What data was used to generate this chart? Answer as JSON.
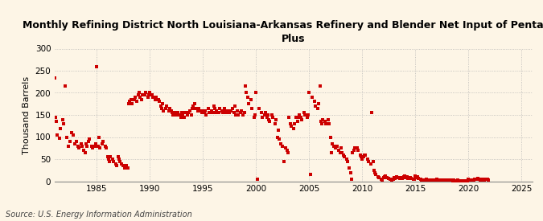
{
  "title": "Monthly Refining District North Louisiana-Arkansas Refinery and Blender Net Input of Pentanes\nPlus",
  "ylabel": "Thousand Barrels",
  "source": "Source: U.S. Energy Information Administration",
  "background_color": "#fdf5e6",
  "marker_color": "#cc0000",
  "grid_color": "#b0b0b0",
  "xlim": [
    1981,
    2026
  ],
  "ylim": [
    0,
    300
  ],
  "yticks": [
    0,
    50,
    100,
    150,
    200,
    250,
    300
  ],
  "xticks": [
    1985,
    1990,
    1995,
    2000,
    2005,
    2010,
    2015,
    2020,
    2025
  ],
  "data": [
    [
      1981.0,
      233
    ],
    [
      1981.1,
      145
    ],
    [
      1981.2,
      135
    ],
    [
      1981.3,
      105
    ],
    [
      1981.5,
      98
    ],
    [
      1981.6,
      120
    ],
    [
      1981.8,
      140
    ],
    [
      1981.9,
      130
    ],
    [
      1982.0,
      215
    ],
    [
      1982.2,
      100
    ],
    [
      1982.3,
      80
    ],
    [
      1982.5,
      90
    ],
    [
      1982.6,
      110
    ],
    [
      1982.8,
      105
    ],
    [
      1982.9,
      85
    ],
    [
      1983.1,
      90
    ],
    [
      1983.2,
      80
    ],
    [
      1983.3,
      75
    ],
    [
      1983.5,
      85
    ],
    [
      1983.6,
      80
    ],
    [
      1983.8,
      70
    ],
    [
      1983.9,
      65
    ],
    [
      1984.0,
      85
    ],
    [
      1984.1,
      80
    ],
    [
      1984.2,
      90
    ],
    [
      1984.3,
      95
    ],
    [
      1984.5,
      80
    ],
    [
      1984.6,
      75
    ],
    [
      1984.8,
      80
    ],
    [
      1984.9,
      85
    ],
    [
      1985.0,
      260
    ],
    [
      1985.1,
      80
    ],
    [
      1985.2,
      100
    ],
    [
      1985.3,
      75
    ],
    [
      1985.5,
      85
    ],
    [
      1985.6,
      90
    ],
    [
      1985.8,
      80
    ],
    [
      1985.9,
      75
    ],
    [
      1986.0,
      55
    ],
    [
      1986.1,
      50
    ],
    [
      1986.2,
      45
    ],
    [
      1986.3,
      55
    ],
    [
      1986.5,
      50
    ],
    [
      1986.6,
      45
    ],
    [
      1986.8,
      40
    ],
    [
      1986.9,
      35
    ],
    [
      1987.0,
      55
    ],
    [
      1987.1,
      50
    ],
    [
      1987.2,
      45
    ],
    [
      1987.3,
      40
    ],
    [
      1987.5,
      35
    ],
    [
      1987.6,
      30
    ],
    [
      1987.8,
      35
    ],
    [
      1987.9,
      30
    ],
    [
      1988.0,
      175
    ],
    [
      1988.1,
      180
    ],
    [
      1988.2,
      185
    ],
    [
      1988.3,
      175
    ],
    [
      1988.5,
      185
    ],
    [
      1988.6,
      190
    ],
    [
      1988.8,
      180
    ],
    [
      1988.9,
      195
    ],
    [
      1989.0,
      200
    ],
    [
      1989.1,
      190
    ],
    [
      1989.2,
      185
    ],
    [
      1989.3,
      195
    ],
    [
      1989.5,
      195
    ],
    [
      1989.6,
      200
    ],
    [
      1989.8,
      190
    ],
    [
      1989.9,
      195
    ],
    [
      1990.0,
      200
    ],
    [
      1990.1,
      195
    ],
    [
      1990.2,
      195
    ],
    [
      1990.3,
      190
    ],
    [
      1990.5,
      185
    ],
    [
      1990.6,
      190
    ],
    [
      1990.8,
      185
    ],
    [
      1990.9,
      180
    ],
    [
      1991.0,
      170
    ],
    [
      1991.1,
      165
    ],
    [
      1991.2,
      175
    ],
    [
      1991.3,
      160
    ],
    [
      1991.5,
      165
    ],
    [
      1991.6,
      170
    ],
    [
      1991.8,
      160
    ],
    [
      1991.9,
      165
    ],
    [
      1992.0,
      160
    ],
    [
      1992.1,
      155
    ],
    [
      1992.2,
      150
    ],
    [
      1992.3,
      155
    ],
    [
      1992.5,
      150
    ],
    [
      1992.6,
      155
    ],
    [
      1992.8,
      150
    ],
    [
      1992.9,
      145
    ],
    [
      1993.0,
      155
    ],
    [
      1993.1,
      150
    ],
    [
      1993.2,
      145
    ],
    [
      1993.3,
      155
    ],
    [
      1993.5,
      150
    ],
    [
      1993.6,
      155
    ],
    [
      1993.8,
      160
    ],
    [
      1993.9,
      150
    ],
    [
      1994.0,
      165
    ],
    [
      1994.1,
      170
    ],
    [
      1994.2,
      175
    ],
    [
      1994.3,
      165
    ],
    [
      1994.5,
      160
    ],
    [
      1994.6,
      165
    ],
    [
      1994.8,
      160
    ],
    [
      1994.9,
      155
    ],
    [
      1995.0,
      160
    ],
    [
      1995.1,
      155
    ],
    [
      1995.2,
      160
    ],
    [
      1995.3,
      150
    ],
    [
      1995.5,
      165
    ],
    [
      1995.6,
      155
    ],
    [
      1995.8,
      160
    ],
    [
      1995.9,
      155
    ],
    [
      1996.0,
      170
    ],
    [
      1996.1,
      165
    ],
    [
      1996.2,
      155
    ],
    [
      1996.3,
      160
    ],
    [
      1996.5,
      155
    ],
    [
      1996.6,
      165
    ],
    [
      1996.8,
      160
    ],
    [
      1996.9,
      155
    ],
    [
      1997.0,
      165
    ],
    [
      1997.1,
      160
    ],
    [
      1997.2,
      155
    ],
    [
      1997.3,
      160
    ],
    [
      1997.5,
      155
    ],
    [
      1997.6,
      160
    ],
    [
      1997.8,
      165
    ],
    [
      1997.9,
      155
    ],
    [
      1998.0,
      170
    ],
    [
      1998.1,
      150
    ],
    [
      1998.2,
      160
    ],
    [
      1998.3,
      150
    ],
    [
      1998.5,
      155
    ],
    [
      1998.6,
      160
    ],
    [
      1998.8,
      150
    ],
    [
      1998.9,
      155
    ],
    [
      1999.0,
      215
    ],
    [
      1999.1,
      200
    ],
    [
      1999.2,
      190
    ],
    [
      1999.3,
      175
    ],
    [
      1999.5,
      185
    ],
    [
      1999.6,
      165
    ],
    [
      1999.8,
      145
    ],
    [
      1999.9,
      150
    ],
    [
      2000.0,
      200
    ],
    [
      2000.1,
      5
    ],
    [
      2000.3,
      165
    ],
    [
      2000.5,
      155
    ],
    [
      2000.6,
      145
    ],
    [
      2000.8,
      150
    ],
    [
      2000.9,
      155
    ],
    [
      2001.0,
      145
    ],
    [
      2001.1,
      150
    ],
    [
      2001.2,
      140
    ],
    [
      2001.3,
      135
    ],
    [
      2001.5,
      150
    ],
    [
      2001.6,
      145
    ],
    [
      2001.8,
      130
    ],
    [
      2001.9,
      140
    ],
    [
      2002.0,
      100
    ],
    [
      2002.1,
      115
    ],
    [
      2002.2,
      95
    ],
    [
      2002.3,
      85
    ],
    [
      2002.5,
      80
    ],
    [
      2002.6,
      45
    ],
    [
      2002.8,
      75
    ],
    [
      2002.9,
      70
    ],
    [
      2003.0,
      65
    ],
    [
      2003.1,
      145
    ],
    [
      2003.2,
      130
    ],
    [
      2003.3,
      125
    ],
    [
      2003.5,
      120
    ],
    [
      2003.6,
      130
    ],
    [
      2003.8,
      145
    ],
    [
      2003.9,
      135
    ],
    [
      2004.0,
      145
    ],
    [
      2004.1,
      150
    ],
    [
      2004.2,
      145
    ],
    [
      2004.3,
      140
    ],
    [
      2004.5,
      155
    ],
    [
      2004.6,
      150
    ],
    [
      2004.8,
      145
    ],
    [
      2004.9,
      150
    ],
    [
      2005.0,
      200
    ],
    [
      2005.1,
      15
    ],
    [
      2005.3,
      190
    ],
    [
      2005.5,
      180
    ],
    [
      2005.6,
      170
    ],
    [
      2005.8,
      165
    ],
    [
      2005.9,
      175
    ],
    [
      2006.0,
      215
    ],
    [
      2006.1,
      135
    ],
    [
      2006.2,
      130
    ],
    [
      2006.3,
      140
    ],
    [
      2006.5,
      135
    ],
    [
      2006.6,
      130
    ],
    [
      2006.8,
      140
    ],
    [
      2006.9,
      130
    ],
    [
      2007.0,
      100
    ],
    [
      2007.1,
      65
    ],
    [
      2007.2,
      85
    ],
    [
      2007.3,
      80
    ],
    [
      2007.5,
      75
    ],
    [
      2007.6,
      80
    ],
    [
      2007.8,
      70
    ],
    [
      2007.9,
      65
    ],
    [
      2008.0,
      75
    ],
    [
      2008.1,
      65
    ],
    [
      2008.2,
      60
    ],
    [
      2008.3,
      55
    ],
    [
      2008.5,
      50
    ],
    [
      2008.6,
      45
    ],
    [
      2008.8,
      30
    ],
    [
      2008.9,
      20
    ],
    [
      2009.0,
      5
    ],
    [
      2009.1,
      65
    ],
    [
      2009.2,
      70
    ],
    [
      2009.3,
      75
    ],
    [
      2009.5,
      75
    ],
    [
      2009.6,
      70
    ],
    [
      2009.8,
      60
    ],
    [
      2009.9,
      55
    ],
    [
      2010.0,
      50
    ],
    [
      2010.1,
      55
    ],
    [
      2010.2,
      60
    ],
    [
      2010.3,
      60
    ],
    [
      2010.5,
      50
    ],
    [
      2010.6,
      45
    ],
    [
      2010.8,
      40
    ],
    [
      2010.9,
      155
    ],
    [
      2011.0,
      45
    ],
    [
      2011.1,
      25
    ],
    [
      2011.2,
      20
    ],
    [
      2011.3,
      15
    ],
    [
      2011.5,
      10
    ],
    [
      2011.6,
      8
    ],
    [
      2011.8,
      5
    ],
    [
      2011.9,
      3
    ],
    [
      2012.0,
      8
    ],
    [
      2012.1,
      10
    ],
    [
      2012.2,
      12
    ],
    [
      2012.3,
      8
    ],
    [
      2012.5,
      6
    ],
    [
      2012.6,
      5
    ],
    [
      2012.8,
      3
    ],
    [
      2012.9,
      4
    ],
    [
      2013.0,
      8
    ],
    [
      2013.1,
      6
    ],
    [
      2013.2,
      10
    ],
    [
      2013.3,
      8
    ],
    [
      2013.5,
      6
    ],
    [
      2013.6,
      8
    ],
    [
      2013.8,
      6
    ],
    [
      2013.9,
      10
    ],
    [
      2014.0,
      12
    ],
    [
      2014.1,
      8
    ],
    [
      2014.2,
      10
    ],
    [
      2014.3,
      6
    ],
    [
      2014.5,
      8
    ],
    [
      2014.6,
      6
    ],
    [
      2014.8,
      4
    ],
    [
      2014.9,
      5
    ],
    [
      2015.0,
      12
    ],
    [
      2015.1,
      8
    ],
    [
      2015.2,
      10
    ],
    [
      2015.3,
      6
    ],
    [
      2015.5,
      4
    ],
    [
      2015.6,
      3
    ],
    [
      2015.8,
      3
    ],
    [
      2015.9,
      2
    ],
    [
      2016.0,
      4
    ],
    [
      2016.1,
      3
    ],
    [
      2016.2,
      2
    ],
    [
      2016.3,
      3
    ],
    [
      2016.5,
      2
    ],
    [
      2016.6,
      2
    ],
    [
      2016.8,
      2
    ],
    [
      2016.9,
      2
    ],
    [
      2017.0,
      4
    ],
    [
      2017.1,
      2
    ],
    [
      2017.2,
      3
    ],
    [
      2017.3,
      2
    ],
    [
      2017.5,
      2
    ],
    [
      2017.6,
      3
    ],
    [
      2017.8,
      2
    ],
    [
      2017.9,
      2
    ],
    [
      2018.0,
      3
    ],
    [
      2018.1,
      2
    ],
    [
      2018.2,
      2
    ],
    [
      2018.3,
      2
    ],
    [
      2018.5,
      1
    ],
    [
      2018.6,
      2
    ],
    [
      2018.8,
      1
    ],
    [
      2018.9,
      1
    ],
    [
      2019.0,
      2
    ],
    [
      2019.1,
      1
    ],
    [
      2019.2,
      1
    ],
    [
      2019.3,
      1
    ],
    [
      2019.5,
      1
    ],
    [
      2019.6,
      1
    ],
    [
      2019.8,
      1
    ],
    [
      2019.9,
      1
    ],
    [
      2020.0,
      4
    ],
    [
      2020.1,
      3
    ],
    [
      2020.2,
      2
    ],
    [
      2020.3,
      3
    ],
    [
      2020.5,
      3
    ],
    [
      2020.6,
      4
    ],
    [
      2020.8,
      5
    ],
    [
      2020.9,
      6
    ],
    [
      2021.0,
      4
    ],
    [
      2021.1,
      3
    ],
    [
      2021.2,
      3
    ],
    [
      2021.3,
      4
    ],
    [
      2021.5,
      3
    ],
    [
      2021.6,
      5
    ],
    [
      2021.8,
      4
    ],
    [
      2021.9,
      3
    ]
  ]
}
